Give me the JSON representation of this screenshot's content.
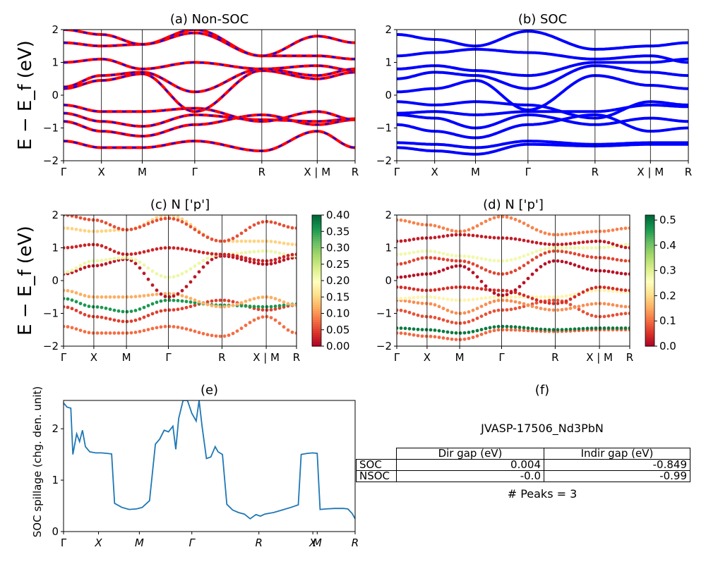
{
  "figure": {
    "row_ylabel": "E − E_f (eV)",
    "tick_labels": {
      "panel_a": [
        "Γ",
        "X",
        "M",
        "Γ",
        "R",
        "X | M",
        "R"
      ],
      "panel_e": [
        "Γ",
        "X",
        "M",
        "Γ",
        "R",
        "X",
        "M",
        "R"
      ]
    }
  },
  "chart_data": [
    {
      "id": "a",
      "type": "line",
      "title": "(a) Non-SOC",
      "ylabel": "E − E_f (eV)",
      "xlabel": "",
      "ylim": [
        -2,
        2
      ],
      "yticks": [
        -2,
        -1,
        0,
        1,
        2
      ],
      "xtick_positions": [
        0,
        0.13,
        0.27,
        0.45,
        0.68,
        0.87,
        1.0
      ],
      "xtick_labels": [
        "Γ",
        "X",
        "M",
        "Γ",
        "R",
        "X | M",
        "R"
      ],
      "style": "red solid bands with blue dashed overlay",
      "colors": {
        "primary": "#ff0000",
        "overlay": "#0000ff"
      },
      "bands": [
        {
          "x": [
            0,
            0.13,
            0.27,
            0.45,
            0.68,
            0.87,
            1.0
          ],
          "y": [
            -1.4,
            -1.6,
            -1.6,
            -1.4,
            -1.7,
            -1.1,
            -1.6
          ]
        },
        {
          "x": [
            0,
            0.13,
            0.27,
            0.45,
            0.68,
            0.87,
            1.0
          ],
          "y": [
            -0.8,
            -1.1,
            -1.25,
            -0.9,
            -0.6,
            -0.9,
            -0.75
          ]
        },
        {
          "x": [
            0,
            0.13,
            0.27,
            0.45,
            0.68,
            0.87,
            1.0
          ],
          "y": [
            -0.55,
            -0.8,
            -0.95,
            -0.6,
            -0.75,
            -0.8,
            -0.72
          ]
        },
        {
          "x": [
            0,
            0.13,
            0.27,
            0.45,
            0.68,
            0.87,
            1.0
          ],
          "y": [
            -0.3,
            -0.5,
            -0.5,
            -0.4,
            -0.8,
            -0.5,
            -0.75
          ]
        },
        {
          "x": [
            0,
            0.13,
            0.27,
            0.45,
            0.68,
            0.87,
            1.0
          ],
          "y": [
            0.2,
            0.45,
            0.65,
            -0.5,
            0.75,
            0.5,
            0.7
          ]
        },
        {
          "x": [
            0,
            0.13,
            0.27,
            0.45,
            0.68,
            0.87,
            1.0
          ],
          "y": [
            0.25,
            0.6,
            0.7,
            0.1,
            0.8,
            0.9,
            0.75
          ]
        },
        {
          "x": [
            0,
            0.13,
            0.27,
            0.45,
            0.68,
            0.87,
            1.0
          ],
          "y": [
            1.0,
            1.1,
            0.8,
            1.0,
            0.8,
            0.6,
            0.8
          ]
        },
        {
          "x": [
            0,
            0.13,
            0.27,
            0.45,
            0.68,
            0.87,
            1.0
          ],
          "y": [
            1.6,
            1.5,
            1.55,
            2.0,
            1.2,
            1.2,
            1.1
          ]
        },
        {
          "x": [
            0,
            0.13,
            0.27,
            0.45,
            0.68,
            0.87,
            1.0
          ],
          "y": [
            2.0,
            1.85,
            1.55,
            1.9,
            1.2,
            1.8,
            1.6
          ]
        }
      ]
    },
    {
      "id": "b",
      "type": "line",
      "title": "(b) SOC",
      "ylabel": "",
      "xlabel": "",
      "ylim": [
        -2,
        2
      ],
      "yticks": [
        -2,
        -1,
        0,
        1,
        2
      ],
      "xtick_positions": [
        0,
        0.13,
        0.27,
        0.45,
        0.68,
        0.87,
        1.0
      ],
      "xtick_labels": [
        "Γ",
        "X",
        "M",
        "Γ",
        "R",
        "X | M",
        "R"
      ],
      "colors": {
        "primary": "#0000ff"
      },
      "bands": [
        {
          "x": [
            0,
            0.13,
            0.27,
            0.45,
            0.68,
            0.87,
            1.0
          ],
          "y": [
            -1.6,
            -1.7,
            -1.8,
            -1.5,
            -1.55,
            -1.5,
            -1.5
          ]
        },
        {
          "x": [
            0,
            0.13,
            0.27,
            0.45,
            0.68,
            0.87,
            1.0
          ],
          "y": [
            -1.45,
            -1.5,
            -1.6,
            -1.4,
            -1.5,
            -1.45,
            -1.45
          ]
        },
        {
          "x": [
            0,
            0.13,
            0.27,
            0.45,
            0.68,
            0.87,
            1.0
          ],
          "y": [
            -0.9,
            -1.1,
            -1.3,
            -0.9,
            -0.6,
            -1.1,
            -1.0
          ]
        },
        {
          "x": [
            0,
            0.13,
            0.27,
            0.45,
            0.68,
            0.87,
            1.0
          ],
          "y": [
            -0.6,
            -0.7,
            -1.0,
            -0.6,
            -0.9,
            -0.7,
            -0.8
          ]
        },
        {
          "x": [
            0,
            0.13,
            0.27,
            0.45,
            0.68,
            0.87,
            1.0
          ],
          "y": [
            -0.55,
            -0.5,
            -0.6,
            -0.5,
            -0.5,
            -0.3,
            -0.35
          ]
        },
        {
          "x": [
            0,
            0.13,
            0.27,
            0.45,
            0.68,
            0.87,
            1.0
          ],
          "y": [
            -0.2,
            -0.3,
            -0.2,
            -0.3,
            -0.7,
            -0.2,
            -0.3
          ]
        },
        {
          "x": [
            0,
            0.13,
            0.27,
            0.45,
            0.68,
            0.87,
            1.0
          ],
          "y": [
            0.1,
            0.2,
            0.45,
            -0.45,
            0.6,
            0.3,
            0.2
          ]
        },
        {
          "x": [
            0,
            0.13,
            0.27,
            0.45,
            0.68,
            0.87,
            1.0
          ],
          "y": [
            0.5,
            0.7,
            0.6,
            0.2,
            0.9,
            0.7,
            0.6
          ]
        },
        {
          "x": [
            0,
            0.13,
            0.27,
            0.45,
            0.68,
            0.87,
            1.0
          ],
          "y": [
            0.8,
            0.9,
            0.75,
            0.6,
            1.0,
            1.0,
            1.1
          ]
        },
        {
          "x": [
            0,
            0.13,
            0.27,
            0.45,
            0.68,
            0.87,
            1.0
          ],
          "y": [
            1.2,
            1.3,
            1.4,
            1.3,
            1.1,
            1.2,
            1.0
          ]
        },
        {
          "x": [
            0,
            0.13,
            0.27,
            0.45,
            0.68,
            0.87,
            1.0
          ],
          "y": [
            1.85,
            1.7,
            1.5,
            1.95,
            1.4,
            1.5,
            1.6
          ]
        }
      ]
    },
    {
      "id": "c",
      "type": "scatter",
      "title": "(c)  N ['p']",
      "ylabel": "E − E_f (eV)",
      "xlabel": "",
      "ylim": [
        -2,
        2
      ],
      "yticks": [
        -2,
        -1,
        0,
        1,
        2
      ],
      "xtick_positions": [
        0,
        0.13,
        0.27,
        0.45,
        0.68,
        0.87,
        1.0
      ],
      "xtick_labels": [
        "Γ",
        "X",
        "M",
        "Γ",
        "R",
        "X | M",
        "R"
      ],
      "colorbar": {
        "min": 0.0,
        "max": 0.4,
        "ticks": [
          "0.40",
          "0.35",
          "0.30",
          "0.25",
          "0.20",
          "0.15",
          "0.10",
          "0.05",
          "0.00"
        ],
        "colormap": "RdYlGn"
      },
      "bands": [
        {
          "x": [
            0,
            0.13,
            0.27,
            0.45,
            0.68,
            0.87,
            1.0
          ],
          "y": [
            -1.4,
            -1.6,
            -1.6,
            -1.4,
            -1.7,
            -1.1,
            -1.6
          ],
          "weight": 0.08
        },
        {
          "x": [
            0,
            0.13,
            0.27,
            0.45,
            0.68,
            0.87,
            1.0
          ],
          "y": [
            -0.8,
            -1.1,
            -1.25,
            -0.9,
            -0.6,
            -0.9,
            -0.75
          ],
          "weight": 0.05
        },
        {
          "x": [
            0,
            0.13,
            0.27,
            0.45,
            0.68,
            0.87,
            1.0
          ],
          "y": [
            -0.55,
            -0.8,
            -0.95,
            -0.6,
            -0.75,
            -0.8,
            -0.72
          ],
          "weight": 0.36
        },
        {
          "x": [
            0,
            0.13,
            0.27,
            0.45,
            0.68,
            0.87,
            1.0
          ],
          "y": [
            -0.3,
            -0.5,
            -0.5,
            -0.4,
            -0.8,
            -0.5,
            -0.75
          ],
          "weight": 0.12
        },
        {
          "x": [
            0,
            0.13,
            0.27,
            0.45,
            0.68,
            0.87,
            1.0
          ],
          "y": [
            0.2,
            0.45,
            0.65,
            -0.5,
            0.75,
            0.5,
            0.7
          ],
          "weight": 0.02
        },
        {
          "x": [
            0,
            0.13,
            0.27,
            0.45,
            0.68,
            0.87,
            1.0
          ],
          "y": [
            0.25,
            0.6,
            0.7,
            0.1,
            0.8,
            0.9,
            0.75
          ],
          "weight": 0.22
        },
        {
          "x": [
            0,
            0.13,
            0.27,
            0.45,
            0.68,
            0.87,
            1.0
          ],
          "y": [
            1.0,
            1.1,
            0.8,
            1.0,
            0.8,
            0.6,
            0.8
          ],
          "weight": 0.03
        },
        {
          "x": [
            0,
            0.13,
            0.27,
            0.45,
            0.68,
            0.87,
            1.0
          ],
          "y": [
            1.6,
            1.5,
            1.55,
            2.0,
            1.2,
            1.2,
            1.1
          ],
          "weight": 0.15
        },
        {
          "x": [
            0,
            0.13,
            0.27,
            0.45,
            0.68,
            0.87,
            1.0
          ],
          "y": [
            2.0,
            1.85,
            1.55,
            1.9,
            1.2,
            1.8,
            1.6
          ],
          "weight": 0.06
        }
      ]
    },
    {
      "id": "d",
      "type": "scatter",
      "title": "(d) N ['p']",
      "ylabel": "",
      "xlabel": "",
      "ylim": [
        -2,
        2
      ],
      "yticks": [
        -2,
        -1,
        0,
        1,
        2
      ],
      "xtick_positions": [
        0,
        0.13,
        0.27,
        0.45,
        0.68,
        0.87,
        1.0
      ],
      "xtick_labels": [
        "Γ",
        "X",
        "M",
        "Γ",
        "R",
        "X | M",
        "R"
      ],
      "colorbar": {
        "min": 0.0,
        "max": 0.52,
        "ticks": [
          "0.5",
          "0.4",
          "0.3",
          "0.2",
          "0.1",
          "0.0"
        ],
        "colormap": "RdYlGn"
      },
      "bands": [
        {
          "x": [
            0,
            0.13,
            0.27,
            0.45,
            0.68,
            0.87,
            1.0
          ],
          "y": [
            -1.6,
            -1.7,
            -1.8,
            -1.5,
            -1.55,
            -1.5,
            -1.5
          ],
          "weight": 0.1
        },
        {
          "x": [
            0,
            0.13,
            0.27,
            0.45,
            0.68,
            0.87,
            1.0
          ],
          "y": [
            -1.45,
            -1.5,
            -1.6,
            -1.4,
            -1.5,
            -1.45,
            -1.45
          ],
          "weight": 0.5
        },
        {
          "x": [
            0,
            0.13,
            0.27,
            0.45,
            0.68,
            0.87,
            1.0
          ],
          "y": [
            -0.9,
            -1.1,
            -1.3,
            -0.9,
            -0.6,
            -1.1,
            -1.0
          ],
          "weight": 0.08
        },
        {
          "x": [
            0,
            0.13,
            0.27,
            0.45,
            0.68,
            0.87,
            1.0
          ],
          "y": [
            -0.6,
            -0.7,
            -1.0,
            -0.6,
            -0.9,
            -0.7,
            -0.8
          ],
          "weight": 0.13
        },
        {
          "x": [
            0,
            0.13,
            0.27,
            0.45,
            0.68,
            0.87,
            1.0
          ],
          "y": [
            -0.55,
            -0.5,
            -0.6,
            -0.5,
            -0.5,
            -0.3,
            -0.35
          ],
          "weight": 0.24
        },
        {
          "x": [
            0,
            0.13,
            0.27,
            0.45,
            0.68,
            0.87,
            1.0
          ],
          "y": [
            -0.2,
            -0.3,
            -0.2,
            -0.3,
            -0.7,
            -0.2,
            -0.3
          ],
          "weight": 0.05
        },
        {
          "x": [
            0,
            0.13,
            0.27,
            0.45,
            0.68,
            0.87,
            1.0
          ],
          "y": [
            0.1,
            0.2,
            0.45,
            -0.45,
            0.6,
            0.3,
            0.2
          ],
          "weight": 0.02
        },
        {
          "x": [
            0,
            0.13,
            0.27,
            0.45,
            0.68,
            0.87,
            1.0
          ],
          "y": [
            0.5,
            0.7,
            0.6,
            0.2,
            0.9,
            0.7,
            0.6
          ],
          "weight": 0.07
        },
        {
          "x": [
            0,
            0.13,
            0.27,
            0.45,
            0.68,
            0.87,
            1.0
          ],
          "y": [
            0.8,
            0.9,
            0.75,
            0.6,
            1.0,
            1.0,
            1.1
          ],
          "weight": 0.28
        },
        {
          "x": [
            0,
            0.13,
            0.27,
            0.45,
            0.68,
            0.87,
            1.0
          ],
          "y": [
            1.2,
            1.3,
            1.4,
            1.3,
            1.1,
            1.2,
            1.0
          ],
          "weight": 0.03
        },
        {
          "x": [
            0,
            0.13,
            0.27,
            0.45,
            0.68,
            0.87,
            1.0
          ],
          "y": [
            1.85,
            1.7,
            1.5,
            1.95,
            1.4,
            1.5,
            1.6
          ],
          "weight": 0.12
        }
      ]
    },
    {
      "id": "e",
      "type": "line",
      "title": "(e)",
      "ylabel": "SOC spillage (chg. den. unit)",
      "xlabel": "",
      "ylim": [
        0,
        2.55
      ],
      "yticks": [
        0,
        1,
        2
      ],
      "xtick_positions": [
        0,
        0.12,
        0.26,
        0.44,
        0.67,
        0.855,
        0.87,
        1.0
      ],
      "xtick_labels": [
        "Γ",
        "X",
        "M",
        "Γ",
        "R",
        "X",
        "M",
        "R"
      ],
      "color": "#1f77b4",
      "x": [
        0,
        0.012,
        0.025,
        0.032,
        0.045,
        0.055,
        0.065,
        0.075,
        0.09,
        0.11,
        0.13,
        0.15,
        0.165,
        0.175,
        0.2,
        0.225,
        0.25,
        0.27,
        0.295,
        0.315,
        0.33,
        0.345,
        0.36,
        0.375,
        0.385,
        0.395,
        0.41,
        0.425,
        0.44,
        0.455,
        0.465,
        0.475,
        0.49,
        0.505,
        0.52,
        0.53,
        0.545,
        0.56,
        0.58,
        0.6,
        0.62,
        0.64,
        0.66,
        0.675,
        0.69,
        0.72,
        0.75,
        0.78,
        0.805,
        0.815,
        0.835,
        0.855,
        0.87,
        0.88,
        0.9,
        0.93,
        0.96,
        0.975,
        0.99,
        1.0
      ],
      "y": [
        2.5,
        2.42,
        2.4,
        1.5,
        1.9,
        1.75,
        1.97,
        1.65,
        1.55,
        1.53,
        1.53,
        1.52,
        1.51,
        0.55,
        0.47,
        0.43,
        0.44,
        0.47,
        0.6,
        1.7,
        1.8,
        1.97,
        1.94,
        2.05,
        1.6,
        2.2,
        2.55,
        2.55,
        2.3,
        2.15,
        2.55,
        2.05,
        1.42,
        1.45,
        1.65,
        1.55,
        1.5,
        0.53,
        0.42,
        0.37,
        0.34,
        0.25,
        0.33,
        0.3,
        0.34,
        0.37,
        0.42,
        0.47,
        0.52,
        1.5,
        1.52,
        1.53,
        1.52,
        0.43,
        0.44,
        0.45,
        0.45,
        0.44,
        0.35,
        0.25
      ]
    },
    {
      "id": "f",
      "type": "table",
      "title": "(f)",
      "material": "JVASP-17506_Nd3PbN",
      "columns": [
        "Dir gap (eV)",
        "Indir gap (eV)"
      ],
      "rows": [
        {
          "label": "SOC",
          "dir": "0.004",
          "indir": "-0.849"
        },
        {
          "label": "NSOC",
          "dir": "-0.0",
          "indir": "-0.99"
        }
      ],
      "peaks": "# Peaks = 3"
    }
  ]
}
